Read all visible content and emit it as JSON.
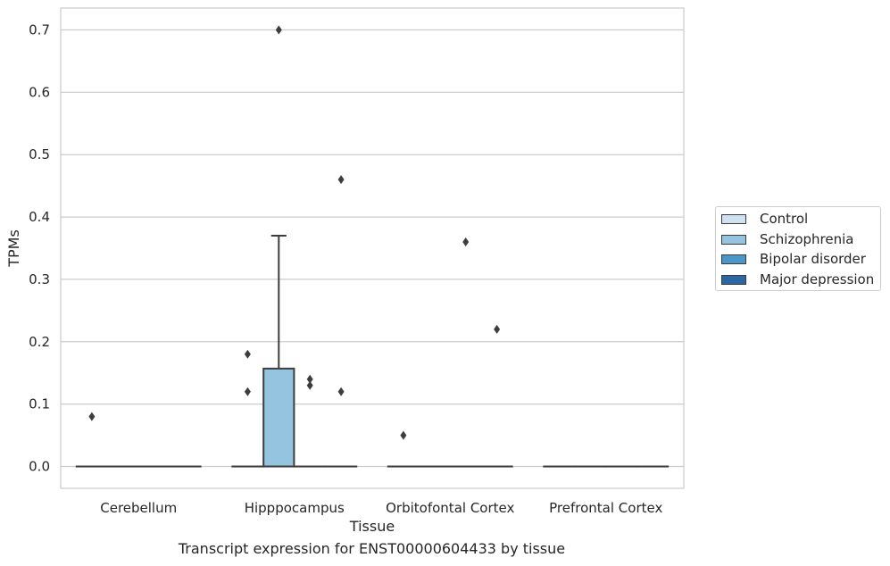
{
  "chart_data": {
    "type": "box",
    "xlabel": "Tissue",
    "ylabel": "TPMs",
    "ylim": [
      -0.035,
      0.735
    ],
    "yticks": [
      0.0,
      0.1,
      0.2,
      0.3,
      0.4,
      0.5,
      0.6,
      0.7
    ],
    "ytick_labels": [
      "0.0",
      "0.1",
      "0.2",
      "0.3",
      "0.4",
      "0.5",
      "0.6",
      "0.7"
    ],
    "grid": true,
    "legend_position": "right",
    "categories": [
      "Cerebellum",
      "Hipppocampus",
      "Orbitofontal Cortex",
      "Prefrontal Cortex"
    ],
    "series": [
      {
        "name": "Control",
        "color": "#d0e1f2"
      },
      {
        "name": "Schizophrenia",
        "color": "#94c4df"
      },
      {
        "name": "Bipolar disorder",
        "color": "#4a98c9"
      },
      {
        "name": "Major depression",
        "color": "#2b67a5"
      }
    ],
    "boxes": [
      {
        "category": 0,
        "series": 0,
        "q1": 0,
        "median": 0,
        "q3": 0,
        "whislo": 0,
        "whishi": 0,
        "fliers": [
          0.08
        ]
      },
      {
        "category": 0,
        "series": 1,
        "q1": 0,
        "median": 0,
        "q3": 0,
        "whislo": 0,
        "whishi": 0,
        "fliers": []
      },
      {
        "category": 0,
        "series": 2,
        "q1": 0,
        "median": 0,
        "q3": 0,
        "whislo": 0,
        "whishi": 0,
        "fliers": []
      },
      {
        "category": 0,
        "series": 3,
        "q1": 0,
        "median": 0,
        "q3": 0,
        "whislo": 0,
        "whishi": 0,
        "fliers": []
      },
      {
        "category": 1,
        "series": 0,
        "q1": 0,
        "median": 0,
        "q3": 0,
        "whislo": 0,
        "whishi": 0,
        "fliers": [
          0.18,
          0.12
        ]
      },
      {
        "category": 1,
        "series": 1,
        "q1": 0,
        "median": 0,
        "q3": 0.157,
        "whislo": 0,
        "whishi": 0.37,
        "fliers": [
          0.7
        ]
      },
      {
        "category": 1,
        "series": 2,
        "q1": 0,
        "median": 0,
        "q3": 0,
        "whislo": 0,
        "whishi": 0,
        "fliers": [
          0.14,
          0.13
        ]
      },
      {
        "category": 1,
        "series": 3,
        "q1": 0,
        "median": 0,
        "q3": 0,
        "whislo": 0,
        "whishi": 0,
        "fliers": [
          0.46,
          0.12
        ]
      },
      {
        "category": 2,
        "series": 0,
        "q1": 0,
        "median": 0,
        "q3": 0,
        "whislo": 0,
        "whishi": 0,
        "fliers": [
          0.05
        ]
      },
      {
        "category": 2,
        "series": 1,
        "q1": 0,
        "median": 0,
        "q3": 0,
        "whislo": 0,
        "whishi": 0,
        "fliers": []
      },
      {
        "category": 2,
        "series": 2,
        "q1": 0,
        "median": 0,
        "q3": 0,
        "whislo": 0,
        "whishi": 0,
        "fliers": [
          0.36
        ]
      },
      {
        "category": 2,
        "series": 3,
        "q1": 0,
        "median": 0,
        "q3": 0,
        "whislo": 0,
        "whishi": 0,
        "fliers": [
          0.22
        ]
      },
      {
        "category": 3,
        "series": 0,
        "q1": 0,
        "median": 0,
        "q3": 0,
        "whislo": 0,
        "whishi": 0,
        "fliers": []
      },
      {
        "category": 3,
        "series": 1,
        "q1": 0,
        "median": 0,
        "q3": 0,
        "whislo": 0,
        "whishi": 0,
        "fliers": []
      },
      {
        "category": 3,
        "series": 2,
        "q1": 0,
        "median": 0,
        "q3": 0,
        "whislo": 0,
        "whishi": 0,
        "fliers": []
      },
      {
        "category": 3,
        "series": 3,
        "q1": 0,
        "median": 0,
        "q3": 0,
        "whislo": 0,
        "whishi": 0,
        "fliers": []
      }
    ]
  },
  "caption": "Transcript expression for ENST00000604433 by tissue"
}
